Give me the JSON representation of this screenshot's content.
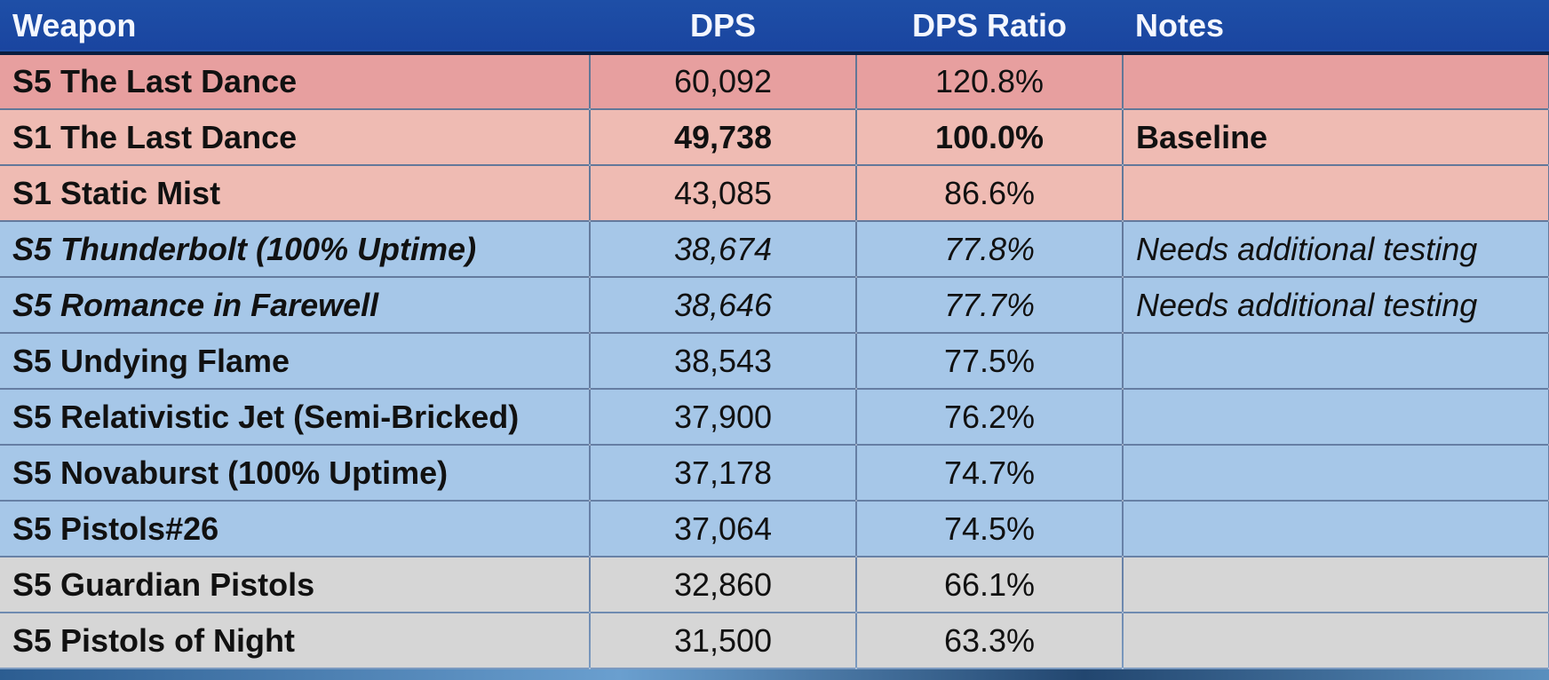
{
  "table": {
    "headers": {
      "weapon": "Weapon",
      "dps": "DPS",
      "ratio": "DPS Ratio",
      "notes": "Notes"
    },
    "rows": [
      {
        "weapon": "S5 The Last Dance",
        "dps": "60,092",
        "ratio": "120.8%",
        "notes": ""
      },
      {
        "weapon": "S1 The Last Dance",
        "dps": "49,738",
        "ratio": "100.0%",
        "notes": "Baseline"
      },
      {
        "weapon": "S1 Static Mist",
        "dps": "43,085",
        "ratio": "86.6%",
        "notes": ""
      },
      {
        "weapon": "S5 Thunderbolt (100% Uptime)",
        "dps": "38,674",
        "ratio": "77.8%",
        "notes": "Needs additional testing"
      },
      {
        "weapon": "S5 Romance in Farewell",
        "dps": "38,646",
        "ratio": "77.7%",
        "notes": "Needs additional testing"
      },
      {
        "weapon": "S5 Undying Flame",
        "dps": "38,543",
        "ratio": "77.5%",
        "notes": ""
      },
      {
        "weapon": "S5 Relativistic Jet (Semi-Bricked)",
        "dps": "37,900",
        "ratio": "76.2%",
        "notes": ""
      },
      {
        "weapon": "S5 Novaburst (100% Uptime)",
        "dps": "37,178",
        "ratio": "74.7%",
        "notes": ""
      },
      {
        "weapon": "S5 Pistols#26",
        "dps": "37,064",
        "ratio": "74.5%",
        "notes": ""
      },
      {
        "weapon": "S5 Guardian Pistols",
        "dps": "32,860",
        "ratio": "66.1%",
        "notes": ""
      },
      {
        "weapon": "S5 Pistols of Night",
        "dps": "31,500",
        "ratio": "63.3%",
        "notes": ""
      }
    ]
  },
  "colors": {
    "header_bg": "#1e4fa7",
    "top_row": "#e79f9f",
    "red_rows": "#efbbb3",
    "blue_rows": "#a6c7e8",
    "gray_rows": "#d6d6d6"
  }
}
